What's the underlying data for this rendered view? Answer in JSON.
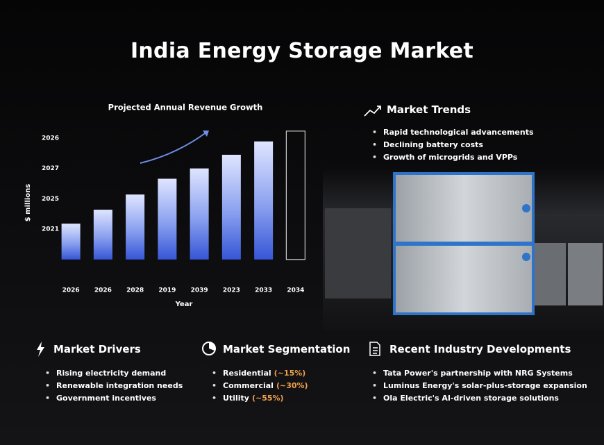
{
  "title": "India Energy Storage Market",
  "chart_data": {
    "type": "bar",
    "title": "Projected Annual Revenue Growth",
    "x_label": "Year",
    "y_label": "$ millions",
    "categories": [
      "2026",
      "2026",
      "2028",
      "2019",
      "2039",
      "2023",
      "2033",
      "2034"
    ],
    "values": [
      1.18,
      1.64,
      2.14,
      2.66,
      3.0,
      3.45,
      3.89,
      4.23
    ],
    "ylim": [
      -0.6,
      4.4
    ],
    "yticks": [
      {
        "value": 1,
        "label": "2021"
      },
      {
        "value": 2,
        "label": "2025"
      },
      {
        "value": 3,
        "label": "2027"
      },
      {
        "value": 4,
        "label": "2026"
      }
    ],
    "grid": false
  },
  "market_trends": {
    "title": "Market Trends",
    "items": [
      "Rapid technological advancements",
      "Declining battery costs",
      "Growth of microgrids and VPPs"
    ]
  },
  "market_drivers": {
    "title": "Market Drivers",
    "items": [
      "Rising electricity demand",
      "Renewable integration needs",
      "Government incentives"
    ]
  },
  "market_segmentation": {
    "title": "Market Segmentation",
    "items": [
      {
        "label": "Residential",
        "share": "(~15%)"
      },
      {
        "label": "Commercial",
        "share": "(~30%)"
      },
      {
        "label": "Utility",
        "share": "(~55%)"
      }
    ]
  },
  "recent_developments": {
    "title": "Recent Industry Developments",
    "items": [
      "Tata Power's partnership with NRG Systems",
      "Luminus Energy's solar-plus-storage expansion",
      "Ola Electric's AI-driven storage solutions"
    ]
  }
}
